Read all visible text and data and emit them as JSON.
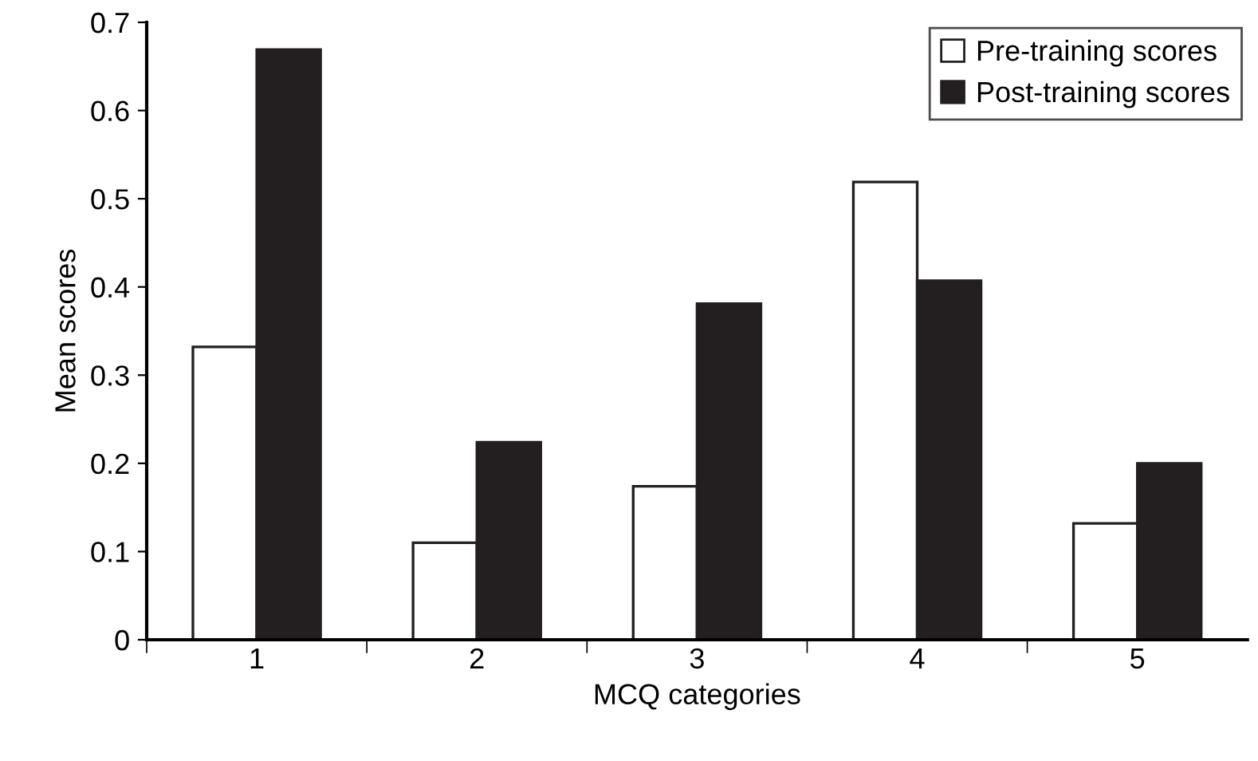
{
  "chart_data": {
    "type": "bar",
    "xlabel": "MCQ categories",
    "ylabel": "Mean scores",
    "categories": [
      "1",
      "2",
      "3",
      "4",
      "5"
    ],
    "series": [
      {
        "name": "Pre-training scores",
        "color": "#ffffff",
        "values": [
          0.332,
          0.11,
          0.174,
          0.519,
          0.132
        ]
      },
      {
        "name": "Post-training scores",
        "color": "#231f20",
        "values": [
          0.669,
          0.224,
          0.381,
          0.407,
          0.2
        ]
      }
    ],
    "ylim": [
      0,
      0.7
    ],
    "yticks": [
      0,
      0.1,
      0.2,
      0.3,
      0.4,
      0.5,
      0.6,
      0.7
    ],
    "grid": false,
    "legend": "top right"
  }
}
